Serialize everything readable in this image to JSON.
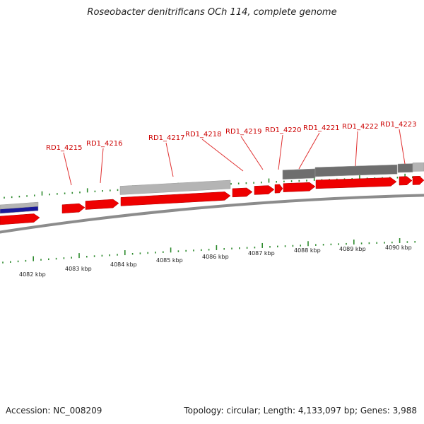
{
  "title": "Roseobacter denitrificans OCh 114, complete genome",
  "footer": {
    "accession": "Accession: NC_008209",
    "summary": "Topology: circular; Length: 4,133,097 bp; Genes: 3,988"
  },
  "colors": {
    "cds": "#ee0000",
    "gene": "#b4b4b4",
    "gene_dark": "#6e6e6e",
    "rna": "#1a1a99",
    "tick": "#2d8a2d",
    "leader": "#e03030",
    "label": "#cc0000",
    "backbone": "#8c8c8c"
  },
  "gene_labels": [
    "RD1_4215",
    "RD1_4216",
    "RD1_4217",
    "RD1_4218",
    "RD1_4219",
    "RD1_4220",
    "RD1_4221",
    "RD1_4222",
    "RD1_4223"
  ],
  "kbp_labels": [
    "4082 kbp",
    "4083 kbp",
    "4084 kbp",
    "4085 kbp",
    "4086 kbp",
    "4087 kbp",
    "4088 kbp",
    "4089 kbp",
    "4090 kbp"
  ]
}
